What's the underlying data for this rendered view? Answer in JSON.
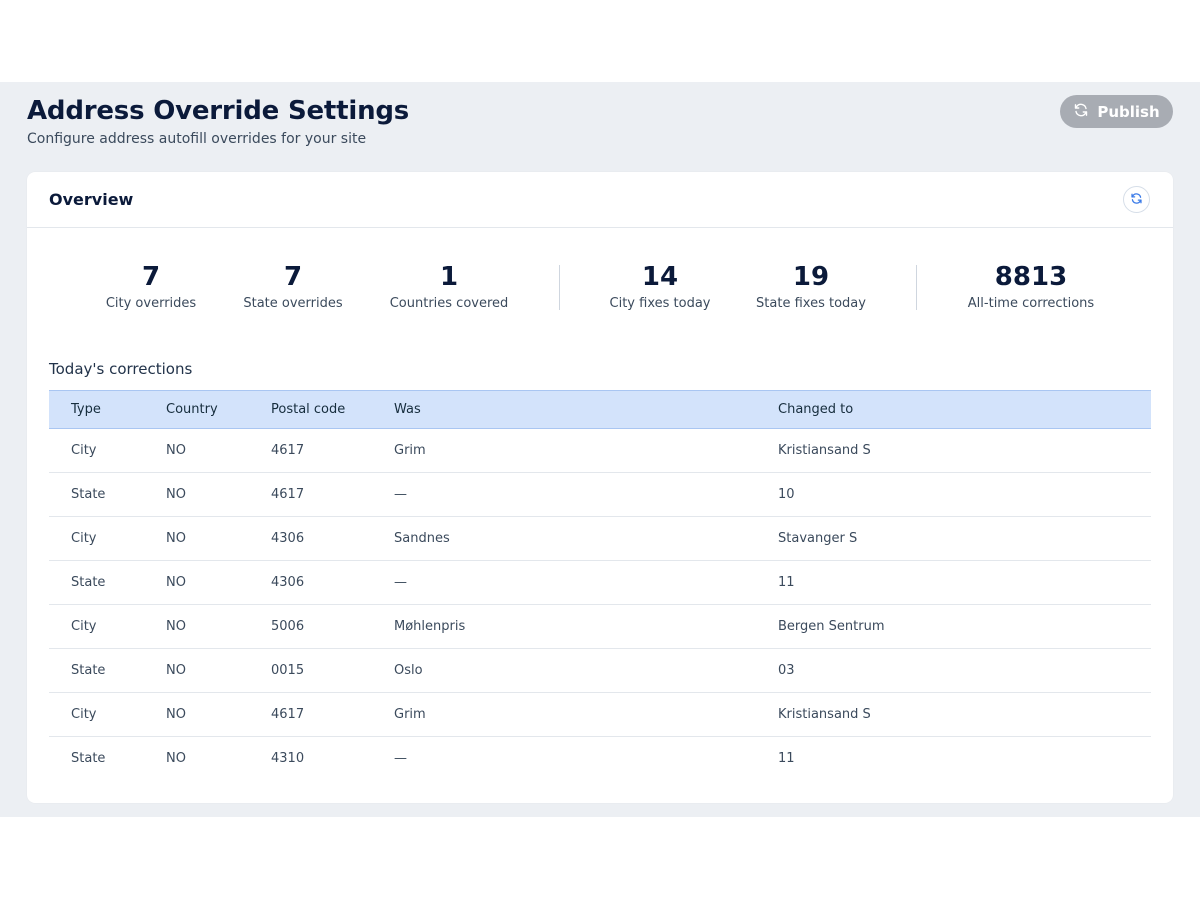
{
  "header": {
    "title": "Address Override Settings",
    "subtitle": "Configure address autofill overrides for your site",
    "publish_label": "Publish"
  },
  "overview": {
    "title": "Overview",
    "stats": [
      {
        "value": "7",
        "label": "City overrides"
      },
      {
        "value": "7",
        "label": "State overrides"
      },
      {
        "value": "1",
        "label": "Countries covered"
      },
      {
        "value": "14",
        "label": "City fixes today"
      },
      {
        "value": "19",
        "label": "State fixes today"
      },
      {
        "value": "8813",
        "label": "All-time corrections"
      }
    ]
  },
  "corrections": {
    "title": "Today's corrections",
    "columns": [
      "Type",
      "Country",
      "Postal code",
      "Was",
      "Changed to"
    ],
    "rows": [
      [
        "City",
        "NO",
        "4617",
        "Grim",
        "Kristiansand S"
      ],
      [
        "State",
        "NO",
        "4617",
        "—",
        "10"
      ],
      [
        "City",
        "NO",
        "4306",
        "Sandnes",
        "Stavanger S"
      ],
      [
        "State",
        "NO",
        "4306",
        "—",
        "11"
      ],
      [
        "City",
        "NO",
        "5006",
        "Møhlenpris",
        "Bergen Sentrum"
      ],
      [
        "State",
        "NO",
        "0015",
        "Oslo",
        "03"
      ],
      [
        "City",
        "NO",
        "4617",
        "Grim",
        "Kristiansand S"
      ],
      [
        "State",
        "NO",
        "4310",
        "—",
        "11"
      ]
    ]
  },
  "icons": {
    "publish": "refresh-icon",
    "overview_refresh": "refresh-icon"
  },
  "colors": {
    "accent": "#3b7be8",
    "table_header": "#d3e3fb",
    "publish_button": "#a8acb3"
  }
}
